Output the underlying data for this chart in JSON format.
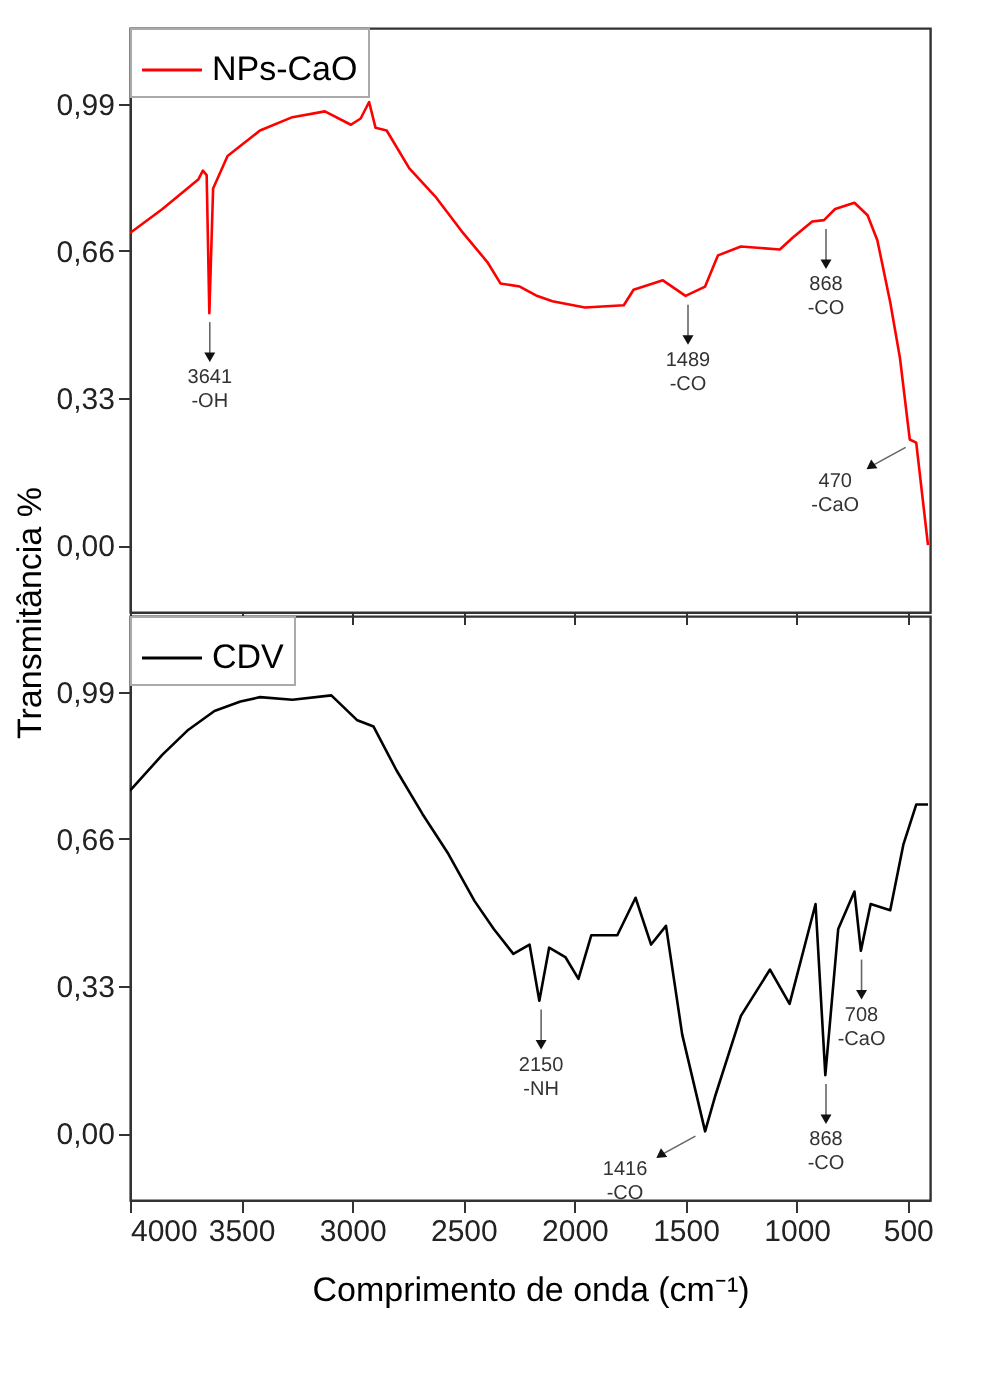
{
  "chart_data": [
    {
      "type": "line",
      "ylabel": "Transmitância %",
      "xlim": [
        4000,
        400
      ],
      "ylim": [
        -0.15,
        1.16
      ],
      "xticks": [
        4000,
        3500,
        3000,
        2500,
        2000,
        1500,
        1000,
        500
      ],
      "yticks": [
        {
          "value": 0,
          "label": "0,00"
        },
        {
          "value": 0.33,
          "label": "0,33"
        },
        {
          "value": 0.66,
          "label": "0,66"
        },
        {
          "value": 0.99,
          "label": "0,99"
        }
      ],
      "tick_labels": "y",
      "grid": false,
      "legend": "top left",
      "marker": "none",
      "line_style": "solid",
      "x": [
        4000,
        3854,
        3693,
        3672,
        3655,
        3643,
        3626,
        3561,
        3415,
        3269,
        3123,
        3006,
        2962,
        2924,
        2895,
        2845,
        2743,
        2626,
        2509,
        2392,
        2333,
        2246,
        2173,
        2099,
        1953,
        1778,
        1734,
        1602,
        1500,
        1412,
        1354,
        1251,
        1076,
        1017,
        930,
        877,
        827,
        740,
        681,
        637,
        579,
        535,
        491,
        462,
        409
      ],
      "series": [
        {
          "name": "NPs-CaO",
          "color": "#ff0000",
          "values": [
            0.7,
            0.754,
            0.82,
            0.84,
            0.83,
            0.52,
            0.8,
            0.873,
            0.93,
            0.96,
            0.973,
            0.943,
            0.957,
            0.994,
            0.936,
            0.93,
            0.845,
            0.782,
            0.705,
            0.635,
            0.587,
            0.58,
            0.56,
            0.547,
            0.533,
            0.538,
            0.573,
            0.594,
            0.559,
            0.58,
            0.65,
            0.67,
            0.663,
            0.69,
            0.726,
            0.729,
            0.754,
            0.768,
            0.74,
            0.684,
            0.545,
            0.419,
            0.237,
            0.23,
            0.0
          ]
        }
      ],
      "annotations": [
        {
          "text": "3641\n-OH",
          "x": 3641,
          "y": 0.52
        },
        {
          "text": "1489\n-CO",
          "x": 1489,
          "y": 0.559
        },
        {
          "text": "868\n-CO",
          "x": 868,
          "y": 0.729
        },
        {
          "text": "470\n-CaO",
          "x": 470,
          "y": 0.23
        }
      ]
    },
    {
      "type": "line",
      "xlabel": "Comprimento de onda (cm⁻¹)",
      "xlim": [
        4000,
        400
      ],
      "ylim": [
        -0.15,
        1.16
      ],
      "xticks": [
        4000,
        3500,
        3000,
        2500,
        2000,
        1500,
        1000,
        500
      ],
      "yticks": [
        {
          "value": 0,
          "label": "0,00"
        },
        {
          "value": 0.33,
          "label": "0,33"
        },
        {
          "value": 0.66,
          "label": "0,66"
        },
        {
          "value": 0.99,
          "label": "0,99"
        }
      ],
      "grid": false,
      "legend": "top left",
      "marker": "none",
      "line_style": "solid",
      "x": [
        4000,
        3854,
        3737,
        3620,
        3503,
        3415,
        3269,
        3094,
        2977,
        2904,
        2801,
        2684,
        2567,
        2450,
        2363,
        2275,
        2202,
        2158,
        2114,
        2041,
        1982,
        1924,
        1807,
        1725,
        1655,
        1588,
        1515,
        1412,
        1368,
        1251,
        1120,
        1032,
        915,
        871,
        813,
        740,
        711,
        667,
        579,
        520,
        462,
        409
      ],
      "series": [
        {
          "name": "CDV",
          "color": "#000000",
          "values": [
            0.768,
            0.849,
            0.905,
            0.947,
            0.968,
            0.978,
            0.972,
            0.982,
            0.926,
            0.912,
            0.814,
            0.716,
            0.626,
            0.521,
            0.458,
            0.402,
            0.423,
            0.297,
            0.416,
            0.395,
            0.346,
            0.444,
            0.444,
            0.528,
            0.423,
            0.465,
            0.221,
            0.004,
            0.081,
            0.263,
            0.367,
            0.29,
            0.514,
            0.13,
            0.458,
            0.542,
            0.409,
            0.514,
            0.5,
            0.647,
            0.737,
            0.737
          ]
        }
      ],
      "annotations": [
        {
          "text": "2150\n-NH",
          "x": 2150,
          "y": 0.297
        },
        {
          "text": "1416\n-CO",
          "x": 1416,
          "y": 0.004
        },
        {
          "text": "868\n-CO",
          "x": 868,
          "y": 0.13
        },
        {
          "text": "708\n-CaO",
          "x": 708,
          "y": 0.409
        }
      ]
    }
  ]
}
